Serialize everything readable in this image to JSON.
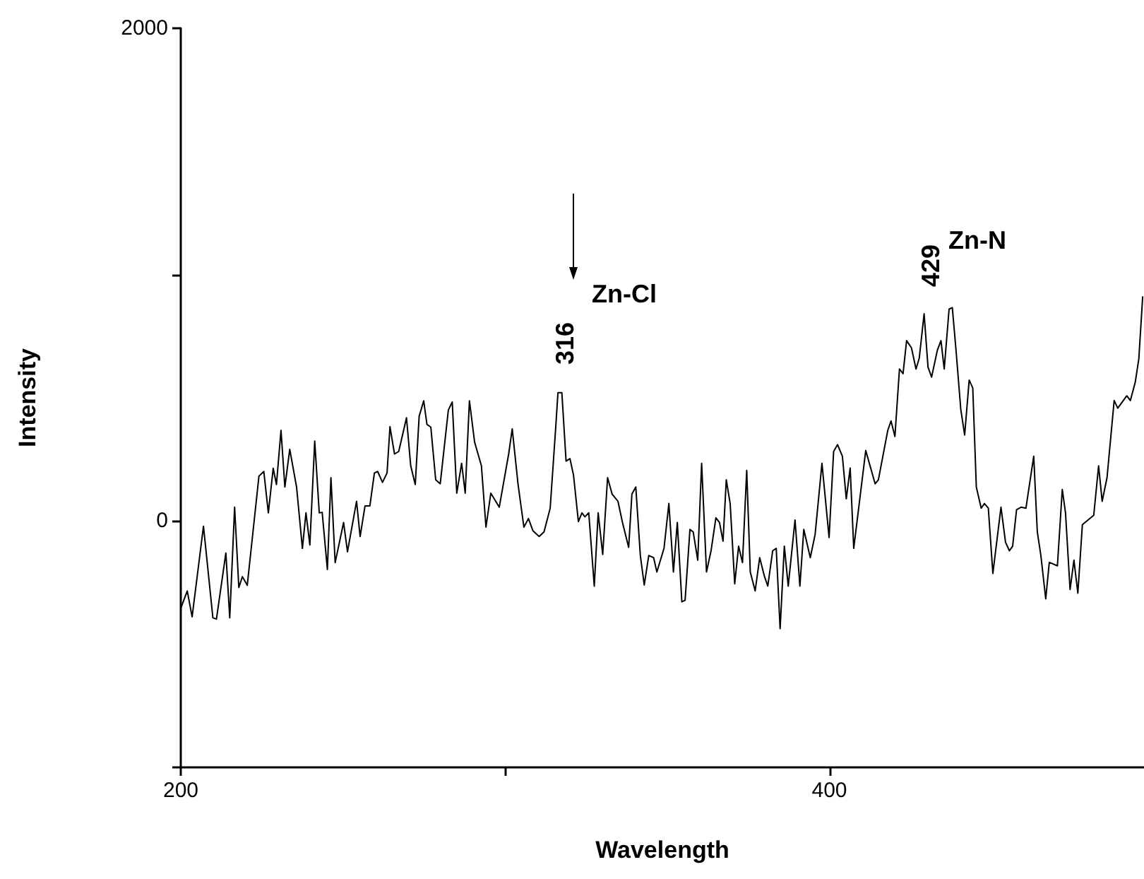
{
  "chart_data": {
    "type": "line",
    "xlabel": "Wavelength",
    "ylabel": "Intensity",
    "xlim": [
      200,
      497
    ],
    "xticks": [
      200,
      {
        "value": 300,
        "label": null
      },
      400
    ],
    "ylim": [
      -1000,
      2000
    ],
    "yticks": [
      {
        "value": -1000,
        "label": null
      },
      0,
      {
        "value": 1000,
        "label": null
      },
      2000
    ],
    "grid": false,
    "annotations": [
      "316",
      "Zn-Cl",
      "429",
      "Zn-N"
    ],
    "series": [
      {
        "color": "#000000",
        "x": [
          200.1,
          202.0,
          203.5,
          207.0,
          209.9,
          211.0,
          213.9,
          215.1,
          216.6,
          217.9,
          219.0,
          220.5,
          224.1,
          225.6,
          227.0,
          228.5,
          229.5,
          230.9,
          232.1,
          233.6,
          235.7,
          237.5,
          238.6,
          239.8,
          241.3,
          242.7,
          243.6,
          245.2,
          246.3,
          247.6,
          250.2,
          251.4,
          254.2,
          255.3,
          256.8,
          258.3,
          259.7,
          260.7,
          262.2,
          263.6,
          264.5,
          265.9,
          267.2,
          269.6,
          270.9,
          272.3,
          273.5,
          274.9,
          275.9,
          277.1,
          278.6,
          280.0,
          282.5,
          283.7,
          285.1,
          286.6,
          287.7,
          289.0,
          290.6,
          292.7,
          294.1,
          295.6,
          298.2,
          301.1,
          302.2,
          304.0,
          305.8,
          307.2,
          308.6,
          310.5,
          312.0,
          313.9,
          315.6,
          316.3,
          317.5,
          318.8,
          320.0,
          321.1,
          322.6,
          323.7,
          324.6,
          325.8,
          327.5,
          328.7,
          330.1,
          331.6,
          333.0,
          334.8,
          336.2,
          338.1,
          339.1,
          340.3,
          341.7,
          342.9,
          344.3,
          345.8,
          346.8,
          349.0,
          350.5,
          351.9,
          353.1,
          354.5,
          355.5,
          357.0,
          358.0,
          359.4,
          360.6,
          362.1,
          363.5,
          365.0,
          366.1,
          367.2,
          368.2,
          369.4,
          370.8,
          372.0,
          373.2,
          374.5,
          375.6,
          377.1,
          378.5,
          380.0,
          381.0,
          382.5,
          383.6,
          384.8,
          386.1,
          387.3,
          389.4,
          390.9,
          392.1,
          394.1,
          395.6,
          397.7,
          399.9,
          401.3,
          402.5,
          404.0,
          405.2,
          406.4,
          407.5,
          411.2,
          414.1,
          415.1,
          418.0,
          419.0,
          420.2,
          421.6,
          422.7,
          423.8,
          425.3,
          426.7,
          427.7,
          429.2,
          430.4,
          431.5,
          433.3,
          434.4,
          435.4,
          436.9,
          437.9,
          439.1,
          440.5,
          441.7,
          443.1,
          444.2,
          445.3,
          446.8,
          447.8,
          449.0,
          450.4,
          452.9,
          454.3,
          455.5,
          456.5,
          457.7,
          459.1,
          460.6,
          463.0,
          464.1,
          465.2,
          466.7,
          467.8,
          470.3,
          471.8,
          472.8,
          474.2,
          475.4,
          476.6,
          478.0,
          481.5,
          483.0,
          484.1,
          485.6,
          487.8,
          488.9,
          491.7,
          492.8,
          494.3,
          495.4,
          496.6
        ],
        "values": [
          -351,
          -284,
          -389,
          -21,
          -393,
          -398,
          -130,
          -393,
          56,
          -270,
          -226,
          -261,
          182,
          201,
          33,
          214,
          148,
          368,
          138,
          291,
          138,
          -111,
          33,
          -97,
          324,
          33,
          35,
          -197,
          176,
          -169,
          -6,
          -125,
          80,
          -63,
          61,
          61,
          195,
          201,
          157,
          195,
          383,
          272,
          282,
          419,
          224,
          148,
          425,
          488,
          392,
          381,
          167,
          151,
          450,
          483,
          113,
          234,
          113,
          488,
          320,
          224,
          -25,
          113,
          56,
          272,
          374,
          148,
          -25,
          10,
          -40,
          -63,
          -44,
          52,
          378,
          521,
          521,
          243,
          253,
          186,
          -2,
          33,
          17,
          33,
          -264,
          33,
          -136,
          176,
          109,
          80,
          -6,
          -107,
          109,
          138,
          -140,
          -260,
          -140,
          -149,
          -207,
          -111,
          71,
          -207,
          -6,
          -328,
          -322,
          -34,
          -44,
          -159,
          234,
          -207,
          -121,
          13,
          -6,
          -82,
          167,
          71,
          -255,
          -102,
          -169,
          205,
          -207,
          -284,
          -149,
          -226,
          -264,
          -121,
          -111,
          -437,
          -102,
          -264,
          4,
          -264,
          -34,
          -149,
          -54,
          234,
          -67,
          282,
          310,
          263,
          90,
          215,
          -111,
          286,
          151,
          167,
          368,
          406,
          343,
          617,
          598,
          732,
          703,
          617,
          661,
          841,
          625,
          584,
          694,
          732,
          617,
          860,
          866,
          684,
          454,
          349,
          572,
          540,
          138,
          52,
          71,
          52,
          -213,
          56,
          -86,
          -121,
          -102,
          46,
          56,
          52,
          263,
          -44,
          -140,
          -316,
          -168,
          -182,
          128,
          33,
          -278,
          -159,
          -293,
          -15,
          23,
          224,
          80,
          176,
          489,
          458,
          508,
          489,
          563,
          658,
          912
        ]
      }
    ]
  }
}
